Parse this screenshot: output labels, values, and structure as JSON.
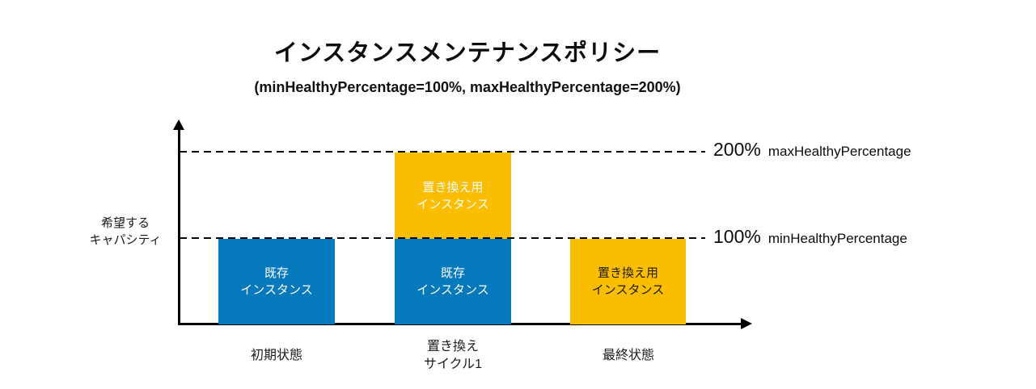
{
  "header": {
    "title": "インスタンスメンテナンスポリシー",
    "subtitle": "(minHealthyPercentage=100%, maxHealthyPercentage=200%)"
  },
  "y_axis": {
    "label": "希望する\nキャパシティ"
  },
  "reference_lines": {
    "max": {
      "value": "200%",
      "name": "maxHealthyPercentage"
    },
    "min": {
      "value": "100%",
      "name": "minHealthyPercentage"
    }
  },
  "bars": {
    "bar1_label": "既存\nインスタンス",
    "bar2_top_label": "置き換え用\nインスタンス",
    "bar2_bottom_label": "既存\nインスタンス",
    "bar3_label": "置き換え用\nインスタンス"
  },
  "x_labels": {
    "initial": "初期状態",
    "cycle": "置き換え\nサイクル1",
    "final": "最終状態"
  },
  "colors": {
    "existing_instance_blue": "#0679BD",
    "replacement_instance_yellow": "#FBBD00",
    "axis_black": "#000000"
  },
  "chart_data": {
    "type": "bar",
    "title": "インスタンスメンテナンスポリシー",
    "subtitle": "(minHealthyPercentage=100%, maxHealthyPercentage=200%)",
    "categories": [
      "初期状態",
      "置き換え サイクル1",
      "最終状態"
    ],
    "series": [
      {
        "name": "既存インスタンス",
        "color": "#0679BD",
        "values": [
          100,
          100,
          0
        ]
      },
      {
        "name": "置き換え用インスタンス",
        "color": "#FBBD00",
        "values": [
          0,
          100,
          100
        ]
      }
    ],
    "stacked": true,
    "ylabel": "希望するキャパシティ",
    "ylim": [
      0,
      225
    ],
    "grid": false,
    "legend": "none",
    "annotations": [
      {
        "y": 200,
        "label": "200% maxHealthyPercentage",
        "style": "dashed"
      },
      {
        "y": 100,
        "label": "100% minHealthyPercentage",
        "style": "dashed"
      }
    ]
  }
}
